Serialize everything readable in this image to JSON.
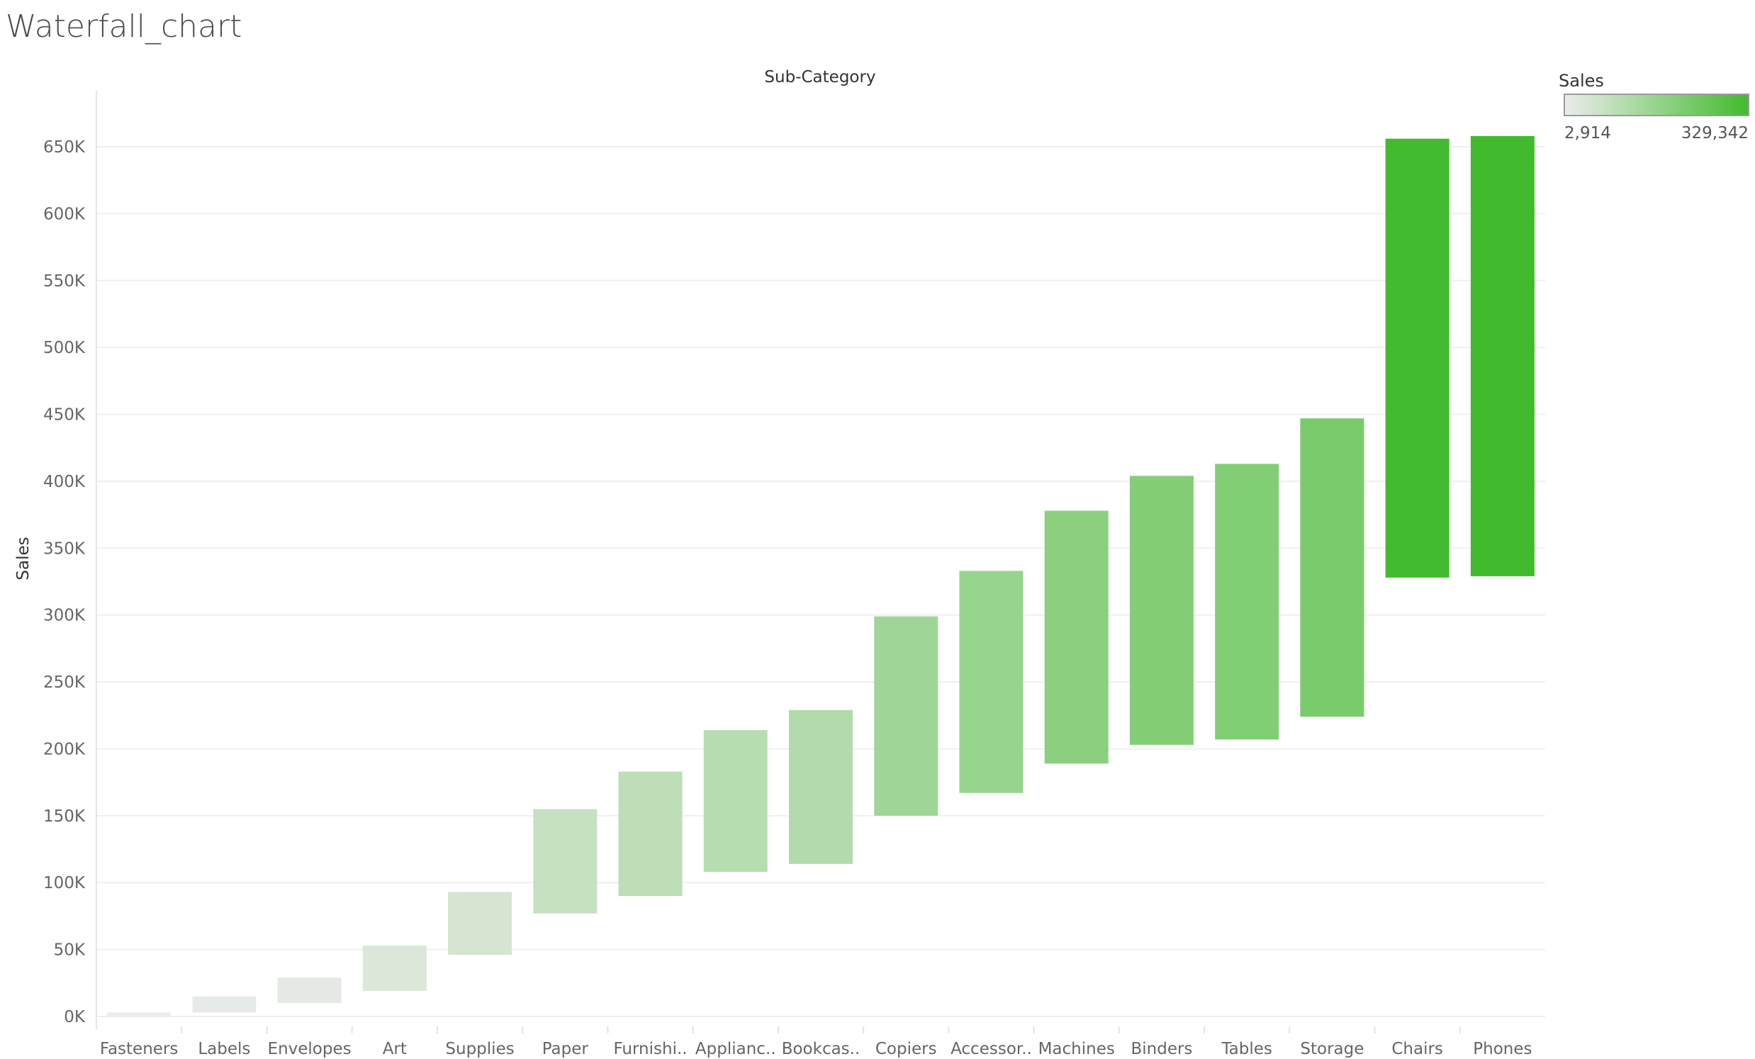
{
  "sheet_title": "Waterfall_chart",
  "chart_data": {
    "type": "bar",
    "subtype": "waterfall",
    "column_header": "Sub-Category",
    "ylabel": "Sales",
    "ylim": [
      0,
      690000
    ],
    "y_ticks": [
      0,
      50000,
      100000,
      150000,
      200000,
      250000,
      300000,
      350000,
      400000,
      450000,
      500000,
      550000,
      600000,
      650000
    ],
    "y_tick_labels": [
      "0K",
      "50K",
      "100K",
      "150K",
      "200K",
      "250K",
      "300K",
      "350K",
      "400K",
      "450K",
      "500K",
      "550K",
      "600K",
      "650K"
    ],
    "grid": true,
    "categories": [
      "Fasteners",
      "Labels",
      "Envelopes",
      "Art",
      "Supplies",
      "Paper",
      "Furnishi..",
      "Applianc..",
      "Bookcas..",
      "Copiers",
      "Accessor..",
      "Machines",
      "Binders",
      "Tables",
      "Storage",
      "Chairs",
      "Phones"
    ],
    "bar_start": [
      0,
      3000,
      10000,
      19000,
      46000,
      77000,
      90000,
      108000,
      114000,
      150000,
      167000,
      189000,
      203000,
      207000,
      224000,
      328000,
      329000
    ],
    "bar_end": [
      3000,
      15000,
      29000,
      53000,
      93000,
      155000,
      183000,
      214000,
      229000,
      299000,
      333000,
      378000,
      404000,
      413000,
      447000,
      656000,
      658000
    ],
    "values": [
      3000,
      12000,
      19000,
      34000,
      47000,
      78000,
      93000,
      106000,
      115000,
      149000,
      166000,
      189000,
      201000,
      206000,
      223000,
      328000,
      329000
    ],
    "color_legend": {
      "title": "Sales",
      "min_label": "2,914",
      "max_label": "329,342",
      "min_value": 2914,
      "max_value": 329342,
      "color_low": "#ececec",
      "color_high": "#41bb2d"
    }
  }
}
